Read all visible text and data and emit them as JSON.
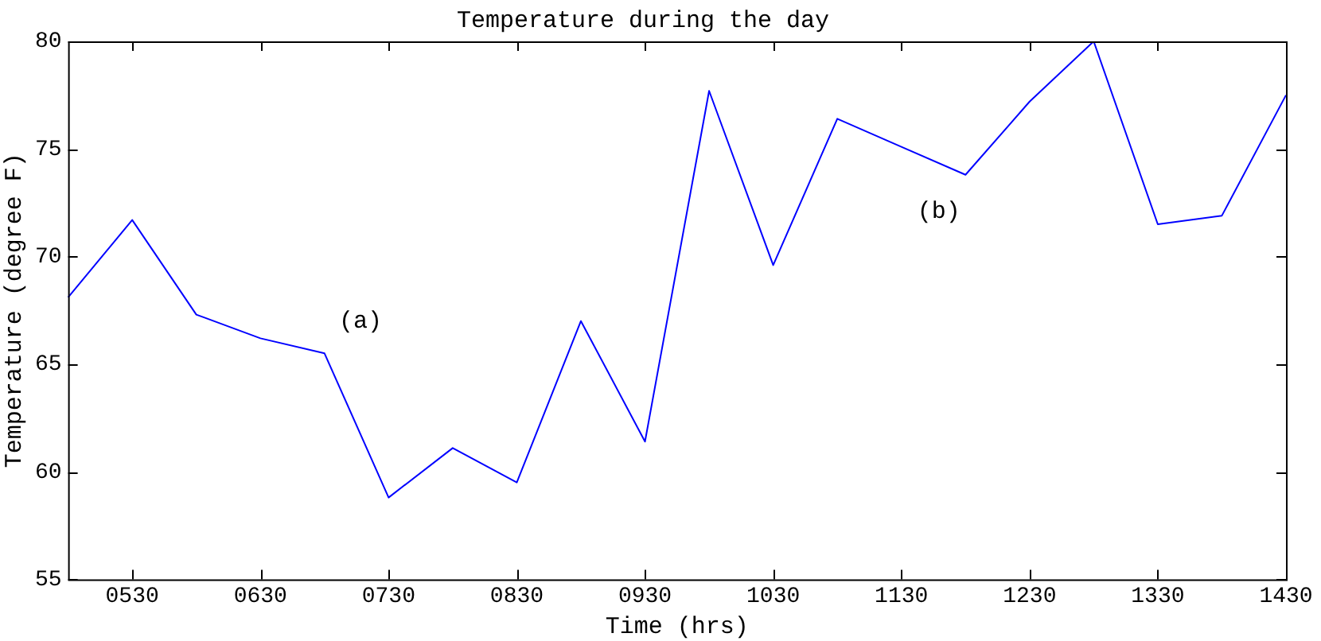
{
  "chart_data": {
    "type": "line",
    "title": "Temperature during the day",
    "xlabel": "Time (hrs)",
    "ylabel": "Temperature (degree F)",
    "categories": [
      null,
      "0530",
      null,
      "0630",
      null,
      "0730",
      null,
      "0830",
      null,
      "0930",
      null,
      "1030",
      null,
      "1130",
      null,
      "1230",
      null,
      "1330",
      null,
      "1430"
    ],
    "series": [
      {
        "color": "#0000ff",
        "values": [
          68.1,
          71.7,
          67.3,
          66.2,
          65.5,
          58.8,
          61.1,
          59.5,
          67.0,
          61.4,
          77.7,
          69.6,
          76.4,
          75.1,
          73.8,
          77.2,
          80.0,
          71.5,
          71.9,
          77.5
        ]
      }
    ],
    "ylim": [
      55,
      80
    ],
    "yticks": [
      55,
      60,
      65,
      70,
      75,
      80
    ],
    "annotations": [
      "(a)",
      "(b)"
    ],
    "grid": false,
    "legend": false,
    "marker": "none",
    "line_style": "solid"
  }
}
